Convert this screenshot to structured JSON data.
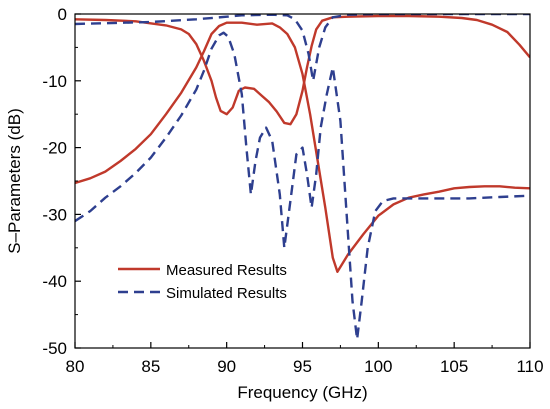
{
  "chart_data": {
    "type": "line",
    "xlabel": "Frequency (GHz)",
    "ylabel": "S–Parameters (dB)",
    "xlim": [
      80,
      110
    ],
    "ylim": [
      -50,
      0
    ],
    "xticks": [
      80,
      85,
      90,
      95,
      100,
      105,
      110
    ],
    "yticks": [
      0,
      -10,
      -20,
      -30,
      -40,
      -50
    ],
    "grid": false,
    "legend_position": "bottom-left",
    "series": [
      {
        "name": "Measured Results",
        "color": "#c0392b",
        "dash": "solid",
        "curves": [
          [
            [
              80,
              -0.8
            ],
            [
              82,
              -0.9
            ],
            [
              84,
              -1.1
            ],
            [
              86,
              -1.7
            ],
            [
              87,
              -2.3
            ],
            [
              87.5,
              -3
            ],
            [
              88,
              -4.5
            ],
            [
              88.5,
              -7
            ],
            [
              89,
              -10
            ],
            [
              89.3,
              -12.5
            ],
            [
              89.6,
              -14.5
            ],
            [
              90,
              -15
            ],
            [
              90.4,
              -14
            ],
            [
              90.8,
              -11.5
            ],
            [
              91.2,
              -11
            ],
            [
              91.8,
              -11.2
            ],
            [
              92.3,
              -12.2
            ],
            [
              92.8,
              -13.2
            ],
            [
              93.3,
              -14.6
            ],
            [
              93.8,
              -16.3
            ],
            [
              94.2,
              -16.5
            ],
            [
              94.6,
              -15
            ],
            [
              95,
              -11.5
            ],
            [
              95.3,
              -8
            ],
            [
              95.6,
              -4.8
            ],
            [
              95.9,
              -2.3
            ],
            [
              96.3,
              -1
            ],
            [
              97,
              -0.5
            ],
            [
              98,
              -0.4
            ],
            [
              100,
              -0.3
            ],
            [
              102,
              -0.3
            ],
            [
              104,
              -0.4
            ],
            [
              105.5,
              -0.6
            ],
            [
              106.5,
              -0.9
            ],
            [
              107.5,
              -1.6
            ],
            [
              108.5,
              -2.7
            ],
            [
              109.3,
              -4.6
            ],
            [
              110,
              -6.5
            ]
          ],
          [
            [
              80,
              -25.3
            ],
            [
              81,
              -24.6
            ],
            [
              82,
              -23.6
            ],
            [
              83,
              -22
            ],
            [
              84,
              -20.2
            ],
            [
              85,
              -18
            ],
            [
              86,
              -15
            ],
            [
              87,
              -11.8
            ],
            [
              88,
              -8
            ],
            [
              88.5,
              -5.6
            ],
            [
              89,
              -3
            ],
            [
              89.5,
              -1.8
            ],
            [
              90,
              -1.3
            ],
            [
              91,
              -1.3
            ],
            [
              92,
              -1.6
            ],
            [
              93,
              -1.4
            ],
            [
              93.5,
              -2
            ],
            [
              94,
              -3
            ],
            [
              94.5,
              -5
            ],
            [
              95,
              -9
            ],
            [
              95.5,
              -15
            ],
            [
              96,
              -22
            ],
            [
              96.5,
              -29
            ],
            [
              97,
              -36.5
            ],
            [
              97.3,
              -38.6
            ],
            [
              97.6,
              -37.5
            ],
            [
              98,
              -36
            ],
            [
              99,
              -33
            ],
            [
              100,
              -30.2
            ],
            [
              101,
              -28.5
            ],
            [
              102,
              -27.5
            ],
            [
              103,
              -27
            ],
            [
              104,
              -26.6
            ],
            [
              105,
              -26.1
            ],
            [
              106,
              -25.9
            ],
            [
              107,
              -25.8
            ],
            [
              108,
              -25.8
            ],
            [
              109,
              -26
            ],
            [
              110,
              -26.1
            ]
          ]
        ]
      },
      {
        "name": "Simulated Results",
        "color": "#2e3f8f",
        "dash": "dashed",
        "curves": [
          [
            [
              80,
              -31
            ],
            [
              81,
              -29.5
            ],
            [
              82,
              -27.5
            ],
            [
              83,
              -25.8
            ],
            [
              84,
              -23.8
            ],
            [
              85,
              -21.5
            ],
            [
              86,
              -18.5
            ],
            [
              87,
              -15.2
            ],
            [
              88,
              -11.3
            ],
            [
              88.5,
              -8.5
            ],
            [
              89,
              -5.2
            ],
            [
              89.5,
              -3.2
            ],
            [
              89.8,
              -2.8
            ],
            [
              90.1,
              -3.4
            ],
            [
              90.5,
              -6
            ],
            [
              91,
              -12
            ],
            [
              91.3,
              -20
            ],
            [
              91.6,
              -27
            ],
            [
              91.9,
              -22
            ],
            [
              92.2,
              -18.5
            ],
            [
              92.6,
              -17
            ],
            [
              93,
              -19
            ],
            [
              93.5,
              -27
            ],
            [
              93.8,
              -35
            ],
            [
              94.2,
              -28
            ],
            [
              94.6,
              -21
            ],
            [
              95,
              -20
            ],
            [
              95.3,
              -24
            ],
            [
              95.6,
              -29
            ],
            [
              95.9,
              -24
            ],
            [
              96.2,
              -17
            ],
            [
              96.6,
              -12
            ],
            [
              97,
              -8
            ],
            [
              97.5,
              -16
            ],
            [
              98,
              -33
            ],
            [
              98.3,
              -43
            ],
            [
              98.6,
              -48.7
            ],
            [
              98.9,
              -43
            ],
            [
              99.3,
              -35
            ],
            [
              99.8,
              -29.5
            ],
            [
              100.3,
              -28
            ],
            [
              101,
              -27.6
            ],
            [
              102,
              -27.6
            ],
            [
              104,
              -27.6
            ],
            [
              106,
              -27.6
            ],
            [
              108,
              -27.4
            ],
            [
              110,
              -27.2
            ]
          ],
          [
            [
              80,
              -1.5
            ],
            [
              85,
              -1.2
            ],
            [
              88,
              -0.8
            ],
            [
              90,
              -0.4
            ],
            [
              91,
              -0.2
            ],
            [
              93,
              -0.1
            ],
            [
              94,
              -0.2
            ],
            [
              94.5,
              -0.8
            ],
            [
              95,
              -2.5
            ],
            [
              95.4,
              -6
            ],
            [
              95.7,
              -10
            ],
            [
              96.1,
              -5
            ],
            [
              96.5,
              -2
            ],
            [
              97,
              -0.5
            ],
            [
              98,
              -0.1
            ],
            [
              100,
              0
            ],
            [
              103,
              0
            ],
            [
              106,
              0
            ],
            [
              110,
              0
            ]
          ]
        ]
      }
    ]
  }
}
